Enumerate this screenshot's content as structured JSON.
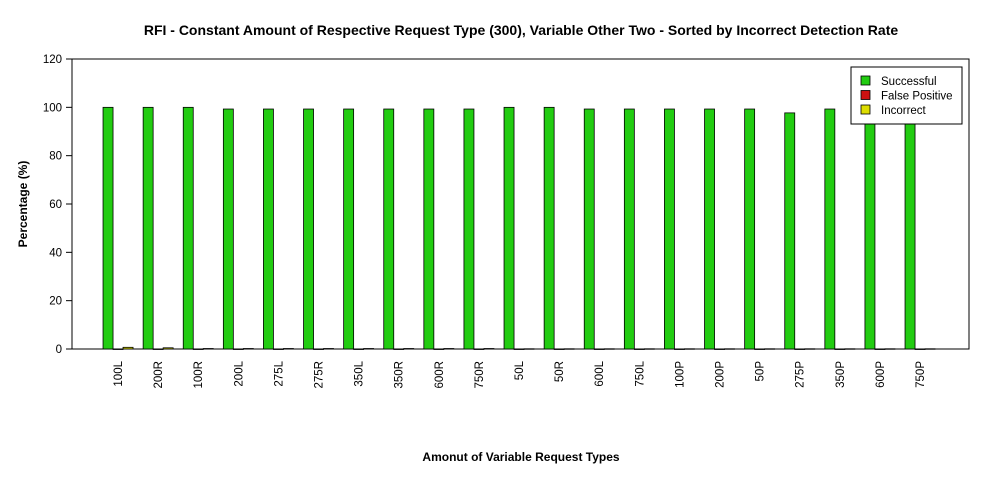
{
  "chart_data": {
    "type": "bar",
    "title": "RFI - Constant Amount of Respective Request Type (300), Variable Other Two - Sorted by Incorrect Detection Rate",
    "xlabel": "Amonut of Variable Request Types",
    "ylabel": "Percentage (%)",
    "ylim": [
      0,
      120
    ],
    "yticks": [
      0,
      20,
      40,
      60,
      80,
      100,
      120
    ],
    "categories": [
      "100L",
      "200R",
      "100R",
      "200L",
      "275L",
      "275R",
      "350L",
      "350R",
      "600R",
      "750R",
      "50L",
      "50R",
      "600L",
      "750L",
      "100P",
      "200P",
      "50P",
      "275P",
      "350P",
      "600P",
      "750P"
    ],
    "series": [
      {
        "name": "Successful",
        "color": "#22cc11",
        "values": [
          100,
          100,
          100,
          99.3,
          99.3,
          99.3,
          99.3,
          99.3,
          99.3,
          99.3,
          100,
          100,
          99.3,
          99.3,
          99.3,
          99.3,
          99.3,
          97.7,
          99.3,
          99.3,
          99.3
        ]
      },
      {
        "name": "False Positive",
        "color": "#cc1111",
        "values": [
          0,
          0,
          0,
          0,
          0,
          0,
          0,
          0,
          0,
          0,
          0,
          0,
          0,
          0,
          0,
          0,
          0,
          0,
          0,
          0,
          0
        ]
      },
      {
        "name": "Incorrect",
        "color": "#dddd00",
        "values": [
          0.7,
          0.5,
          0.2,
          0.2,
          0.2,
          0.2,
          0.2,
          0.2,
          0.2,
          0.2,
          0.1,
          0.1,
          0.1,
          0.1,
          0.1,
          0.1,
          0.1,
          0.1,
          0.1,
          0.1,
          0.1
        ]
      }
    ],
    "legend_position": "top-right",
    "grid": false
  }
}
